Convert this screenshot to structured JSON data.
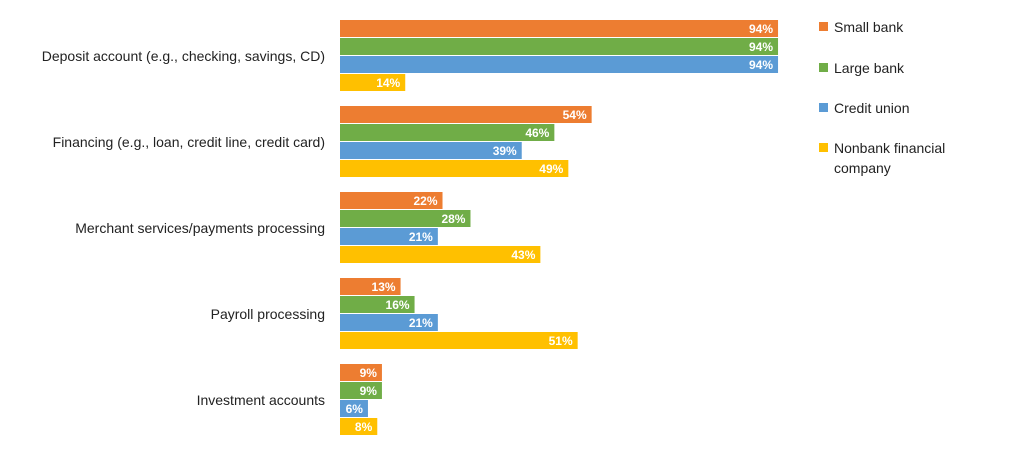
{
  "chart_data": {
    "type": "bar",
    "orientation": "horizontal",
    "title": "",
    "xlabel": "",
    "ylabel": "",
    "xlim": [
      0,
      100
    ],
    "grid": false,
    "legend_position": "right",
    "categories": [
      "Deposit account (e.g., checking, savings, CD)",
      "Financing (e.g., loan, credit line, credit card)",
      "Merchant services/payments processing",
      "Payroll processing",
      "Investment accounts"
    ],
    "series": [
      {
        "name": "Small bank",
        "color": "#ED7D31",
        "values": [
          94,
          54,
          22,
          13,
          9
        ]
      },
      {
        "name": "Large bank",
        "color": "#70AD47",
        "values": [
          94,
          46,
          28,
          16,
          9
        ]
      },
      {
        "name": "Credit union",
        "color": "#5B9BD5",
        "values": [
          94,
          39,
          21,
          21,
          6
        ]
      },
      {
        "name": "Nonbank financial company",
        "color": "#FFC000",
        "values": [
          14,
          49,
          43,
          51,
          8
        ]
      }
    ],
    "legend_lines": [
      [
        "Small bank"
      ],
      [
        "Large bank"
      ],
      [
        "Credit union"
      ],
      [
        "Nonbank financial",
        "company"
      ]
    ],
    "value_suffix": "%"
  }
}
